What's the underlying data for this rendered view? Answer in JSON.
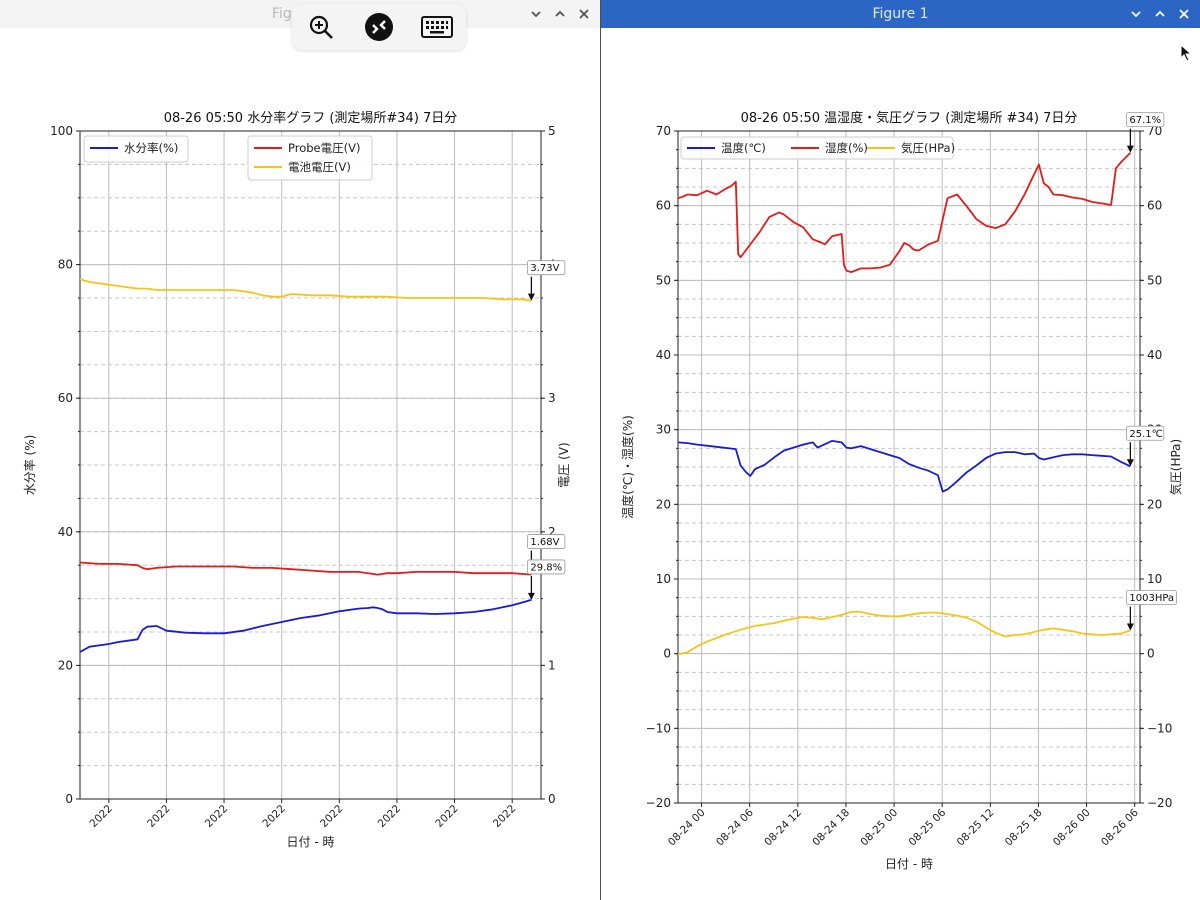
{
  "window1": {
    "title": "Figure 1",
    "chart_data": {
      "type": "line",
      "title": "08-26 05:50  水分率グラフ (測定場所#34) 7日分",
      "xlabel": "日付 - 時",
      "ylabel": "水分率 (%)",
      "ylabel_right": "電圧 (V)",
      "ylim": [
        0,
        100
      ],
      "ylim_right": [
        0,
        5
      ],
      "yticks": [
        "0",
        "20",
        "40",
        "60",
        "80",
        "100"
      ],
      "yticks_right": [
        "0",
        "1",
        "2",
        "3",
        "4",
        "5"
      ],
      "xlim": [
        0,
        96
      ],
      "xtick_pos": [
        6,
        18,
        30,
        42,
        54,
        66,
        78,
        90
      ],
      "xtick_labels": [
        "2022",
        "2022",
        "2022",
        "2022",
        "2022",
        "2022",
        "2022",
        "2022"
      ],
      "grid": true,
      "legend_left": [
        "水分率(%)"
      ],
      "legend_right": [
        "Probe電圧(V)",
        "電池電圧(V)"
      ],
      "series": [
        {
          "name": "水分率(%)",
          "axis": "left",
          "color": "#1a1ad4",
          "x": [
            0,
            2,
            4,
            6,
            8,
            10,
            12,
            13,
            14,
            16,
            18,
            22,
            26,
            30,
            34,
            38,
            42,
            46,
            50,
            54,
            58,
            60,
            61,
            62,
            63,
            64,
            66,
            70,
            74,
            78,
            82,
            86,
            88,
            90,
            92,
            94
          ],
          "y": [
            22,
            22.8,
            23,
            23.2,
            23.5,
            23.7,
            23.9,
            25.3,
            25.8,
            25.9,
            25.2,
            24.9,
            24.8,
            24.8,
            25.2,
            25.9,
            26.5,
            27.1,
            27.5,
            28.1,
            28.5,
            28.6,
            28.7,
            28.6,
            28.4,
            28,
            27.8,
            27.8,
            27.7,
            27.8,
            28,
            28.4,
            28.7,
            29,
            29.4,
            29.8
          ]
        },
        {
          "name": "Probe電圧(V)",
          "axis": "right",
          "color": "#e31b1b",
          "x": [
            0,
            4,
            8,
            12,
            13,
            14,
            16,
            20,
            24,
            28,
            32,
            36,
            40,
            44,
            48,
            52,
            56,
            58,
            62,
            64,
            66,
            70,
            74,
            78,
            82,
            86,
            90,
            94
          ],
          "y": [
            1.77,
            1.76,
            1.76,
            1.75,
            1.73,
            1.72,
            1.73,
            1.74,
            1.74,
            1.74,
            1.74,
            1.73,
            1.73,
            1.72,
            1.71,
            1.7,
            1.7,
            1.7,
            1.68,
            1.69,
            1.69,
            1.7,
            1.7,
            1.7,
            1.69,
            1.69,
            1.69,
            1.68
          ]
        },
        {
          "name": "電池電圧(V)",
          "axis": "right",
          "color": "#f5c518",
          "x": [
            0,
            2,
            4,
            6,
            8,
            10,
            12,
            14,
            16,
            20,
            24,
            28,
            32,
            34,
            36,
            38,
            40,
            42,
            44,
            48,
            52,
            56,
            60,
            64,
            68,
            72,
            76,
            80,
            84,
            88,
            92,
            94
          ],
          "y": [
            3.89,
            3.87,
            3.86,
            3.85,
            3.84,
            3.83,
            3.82,
            3.82,
            3.81,
            3.81,
            3.81,
            3.81,
            3.81,
            3.8,
            3.79,
            3.77,
            3.76,
            3.76,
            3.78,
            3.77,
            3.77,
            3.76,
            3.76,
            3.76,
            3.75,
            3.75,
            3.75,
            3.75,
            3.75,
            3.74,
            3.74,
            3.73
          ]
        }
      ],
      "annotations": [
        {
          "text": "3.73V",
          "x": 94,
          "axis": "right",
          "y": 3.73
        },
        {
          "text": "1.68V",
          "x": 94,
          "axis": "right",
          "y": 1.68
        },
        {
          "text": "29.8%",
          "x": 94,
          "axis": "left",
          "y": 29.8
        }
      ]
    }
  },
  "window2": {
    "title": "Figure 1",
    "chart_data": {
      "type": "line",
      "title": "08-26 05:50  温湿度・気圧グラフ (測定場所 #34) 7日分",
      "xlabel": "日付 - 時",
      "ylabel": "温度(℃)・湿度(%)",
      "ylabel_right": "気圧(HPa)",
      "ylim": [
        -20,
        70
      ],
      "ylim_right": [
        -20,
        70
      ],
      "yticks": [
        "−20",
        "−10",
        "0",
        "10",
        "20",
        "30",
        "40",
        "50",
        "60",
        "70"
      ],
      "yticks_right": [
        "−20",
        "−10",
        "0",
        "10",
        "20",
        "30",
        "40",
        "50",
        "60",
        "70"
      ],
      "xlim": [
        0,
        96
      ],
      "xtick_pos": [
        4.9,
        14.9,
        24.9,
        34.9,
        44.9,
        54.9,
        64.9,
        74.9,
        84.9,
        94.9
      ],
      "xtick_labels": [
        "08-24 00",
        "08-24 06",
        "08-24 12",
        "08-24 18",
        "08-25 00",
        "08-25 06",
        "08-25 12",
        "08-25 18",
        "08-26 00",
        "08-26 06"
      ],
      "grid": true,
      "legend": [
        "温度(℃)",
        "湿度(%)",
        "気圧(HPa)"
      ],
      "series": [
        {
          "name": "温度(℃)",
          "axis": "left",
          "color": "#1a1ad4",
          "x": [
            0,
            2,
            4,
            8,
            12,
            13,
            14,
            15,
            16,
            18,
            20,
            22,
            24,
            26,
            28,
            29,
            30,
            32,
            34,
            35,
            36,
            38,
            40,
            42,
            44,
            46,
            48,
            50,
            52,
            53,
            54,
            55,
            56,
            58,
            60,
            62,
            64,
            66,
            68,
            70,
            72,
            74,
            75,
            76,
            78,
            80,
            82,
            84,
            86,
            88,
            90,
            92,
            94
          ],
          "y": [
            28.3,
            28.2,
            28,
            27.7,
            27.4,
            25.2,
            24.4,
            23.8,
            24.7,
            25.3,
            26.3,
            27.2,
            27.6,
            28,
            28.3,
            27.6,
            27.9,
            28.5,
            28.3,
            27.6,
            27.5,
            27.8,
            27.4,
            27,
            26.6,
            26.2,
            25.4,
            24.9,
            24.5,
            24.2,
            23.9,
            21.7,
            22,
            23.1,
            24.3,
            25.2,
            26.2,
            26.8,
            27,
            27,
            26.7,
            26.8,
            26.2,
            26,
            26.3,
            26.6,
            26.7,
            26.7,
            26.6,
            26.5,
            26.4,
            25.7,
            25.1
          ]
        },
        {
          "name": "湿度(%)",
          "axis": "left",
          "color": "#e31b1b",
          "x": [
            0,
            1,
            2,
            4,
            6,
            8,
            10,
            11,
            12,
            12.5,
            13,
            15,
            17,
            19,
            21,
            22,
            24,
            26,
            28,
            30,
            30.5,
            32,
            34,
            34.5,
            35,
            36,
            38,
            40,
            42,
            44,
            46,
            47,
            48,
            49,
            50,
            52,
            54,
            56,
            58,
            60,
            62,
            64,
            66,
            68,
            70,
            72,
            74,
            75,
            76,
            77,
            78,
            80,
            82,
            84,
            86,
            88,
            90,
            91,
            92,
            94
          ],
          "y": [
            61,
            61.2,
            61.5,
            61.4,
            62,
            61.5,
            62.3,
            62.6,
            63.2,
            53.5,
            53.1,
            54.8,
            56.5,
            58.5,
            59.1,
            58.8,
            57.8,
            57.1,
            55.5,
            55,
            54.8,
            55.9,
            56.2,
            52,
            51.3,
            51.1,
            51.6,
            51.6,
            51.7,
            52.1,
            53.9,
            55,
            54.7,
            54.1,
            54,
            54.8,
            55.3,
            61,
            61.5,
            59.9,
            58.2,
            57.3,
            57,
            57.5,
            59.2,
            61.5,
            64.2,
            65.5,
            63,
            62.5,
            61.5,
            61.4,
            61.1,
            60.9,
            60.5,
            60.3,
            60.1,
            65,
            65.8,
            67.1
          ]
        },
        {
          "name": "気圧(HPa)",
          "axis": "right",
          "color": "#f5c518",
          "x": [
            0,
            2,
            4,
            6,
            8,
            10,
            12,
            14,
            16,
            18,
            20,
            22,
            24,
            26,
            28,
            30,
            32,
            34,
            36,
            38,
            40,
            42,
            44,
            46,
            48,
            50,
            52,
            54,
            56,
            58,
            60,
            62,
            64,
            66,
            68,
            70,
            72,
            74,
            76,
            78,
            80,
            82,
            84,
            86,
            88,
            90,
            92,
            94
          ],
          "y": [
            -0.1,
            0.2,
            1,
            1.6,
            2.1,
            2.6,
            3,
            3.4,
            3.7,
            3.9,
            4.1,
            4.4,
            4.7,
            4.9,
            4.8,
            4.6,
            4.9,
            5.2,
            5.6,
            5.6,
            5.3,
            5.1,
            5,
            5,
            5.2,
            5.4,
            5.5,
            5.5,
            5.3,
            5.1,
            4.8,
            4.3,
            3.5,
            2.8,
            2.3,
            2.5,
            2.6,
            2.9,
            3.2,
            3.4,
            3.2,
            3,
            2.7,
            2.6,
            2.5,
            2.6,
            2.7,
            3.1
          ]
        }
      ],
      "annotations": [
        {
          "text": "67.1%",
          "x": 94,
          "axis": "left",
          "y": 67.1
        },
        {
          "text": "25.1℃",
          "x": 94,
          "axis": "left",
          "y": 25.1
        },
        {
          "text": "1003HPa",
          "x": 94,
          "axis": "right",
          "y": 3.1
        }
      ]
    }
  },
  "icons": {
    "zoom": "zoom-in-icon",
    "rd": "remote-desktop-icon",
    "kbd": "keyboard-icon",
    "cursor": "mouse-cursor-icon"
  }
}
